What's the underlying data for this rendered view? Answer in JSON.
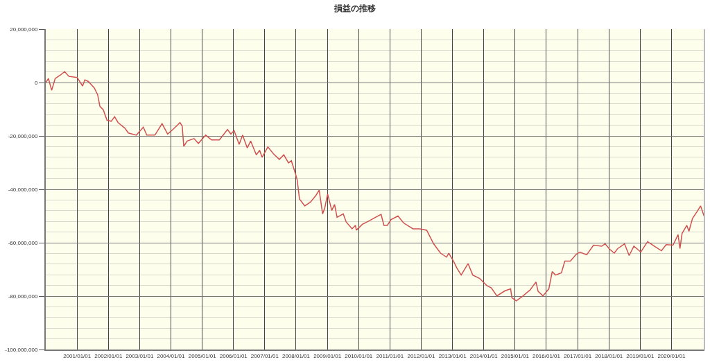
{
  "chart_data": {
    "type": "line",
    "title": "損益の推移",
    "x": [
      "2000-01-01",
      "2000-02-01",
      "2000-03-10",
      "2000-04-20",
      "2000-06-20",
      "2000-08-08",
      "2000-09-27",
      "2001-01-01",
      "2001-03-06",
      "2001-04-01",
      "2001-05-12",
      "2001-07-20",
      "2001-08-29",
      "2001-09-24",
      "2001-11-02",
      "2001-12-16",
      "2002-02-03",
      "2002-03-15",
      "2002-04-24",
      "2002-07-13",
      "2002-08-22",
      "2002-11-24",
      "2003-02-13",
      "2003-03-25",
      "2003-06-28",
      "2003-09-20",
      "2003-11-24",
      "2004-01-30",
      "2004-04-16",
      "2004-05-12",
      "2004-05-30",
      "2004-07-09",
      "2004-09-27",
      "2004-11-17",
      "2005-02-10",
      "2005-04-20",
      "2005-07-20",
      "2005-10-23",
      "2005-12-01",
      "2006-01-08",
      "2006-03-08",
      "2006-04-17",
      "2006-06-10",
      "2006-07-20",
      "2006-09-24",
      "2006-11-02",
      "2006-12-01",
      "2007-02-06",
      "2007-04-12",
      "2007-06-20",
      "2007-08-11",
      "2007-10-05",
      "2007-11-07",
      "2007-12-24",
      "2008-01-15",
      "2008-02-10",
      "2008-04-12",
      "2008-06-17",
      "2008-08-22",
      "2008-09-27",
      "2008-11-06",
      "2008-12-01",
      "2009-01-04",
      "2009-02-21",
      "2009-03-26",
      "2009-04-24",
      "2009-07-05",
      "2009-08-08",
      "2009-10-16",
      "2009-11-24",
      "2009-12-05",
      "2010-02-14",
      "2010-05-05",
      "2010-07-09",
      "2010-09-20",
      "2010-10-23",
      "2010-12-01",
      "2011-01-15",
      "2011-04-05",
      "2011-06-10",
      "2011-09-27",
      "2011-12-16",
      "2012-03-05",
      "2012-05-25",
      "2012-08-14",
      "2012-10-23",
      "2012-11-18",
      "2013-01-12",
      "2013-02-21",
      "2013-04-12",
      "2013-07-01",
      "2013-08-25",
      "2013-11-14",
      "2014-02-03",
      "2014-03-29",
      "2014-06-03",
      "2014-09-06",
      "2014-11-10",
      "2014-11-25",
      "2015-01-15",
      "2015-04-05",
      "2015-06-25",
      "2015-09-02",
      "2015-09-27",
      "2015-11-22",
      "2016-01-30",
      "2016-03-10",
      "2016-04-16",
      "2016-06-25",
      "2016-08-04",
      "2016-10-08",
      "2016-12-16",
      "2017-01-26",
      "2017-04-16",
      "2017-07-05",
      "2017-10-08",
      "2017-11-17",
      "2018-01-08",
      "2018-03-04",
      "2018-04-13",
      "2018-07-02",
      "2018-08-25",
      "2018-10-19",
      "2019-01-08",
      "2019-03-28",
      "2019-06-17",
      "2019-09-06",
      "2019-10-31",
      "2020-01-19",
      "2020-03-18",
      "2020-04-09",
      "2020-05-04",
      "2020-06-28",
      "2020-07-23",
      "2020-09-02",
      "2020-10-27",
      "2020-12-06",
      "2021-01-15"
    ],
    "series": [
      {
        "color": "#d05050",
        "values": [
          0,
          1500000,
          -2900000,
          1500000,
          2800000,
          4100000,
          2300000,
          1900000,
          -1300000,
          1000000,
          400000,
          -2000000,
          -4600000,
          -8900000,
          -10200000,
          -14100000,
          -14500000,
          -12800000,
          -15000000,
          -17100000,
          -18900000,
          -19700000,
          -16700000,
          -19700000,
          -19700000,
          -15400000,
          -19300000,
          -17400000,
          -15000000,
          -16300000,
          -23900000,
          -21900000,
          -21000000,
          -22800000,
          -19700000,
          -21500000,
          -21500000,
          -17600000,
          -19300000,
          -18000000,
          -23200000,
          -19700000,
          -24500000,
          -21900000,
          -27100000,
          -25400000,
          -28000000,
          -24100000,
          -26700000,
          -28800000,
          -27100000,
          -30100000,
          -29300000,
          -34000000,
          -36600000,
          -43600000,
          -46200000,
          -44800000,
          -42200000,
          -40300000,
          -49200000,
          -47000000,
          -41800000,
          -47900000,
          -45700000,
          -50500000,
          -49200000,
          -52200000,
          -54800000,
          -53500000,
          -55300000,
          -53100000,
          -51800000,
          -50600000,
          -49400000,
          -53500000,
          -53500000,
          -51300000,
          -50000000,
          -52600000,
          -54800000,
          -54800000,
          -55300000,
          -60400000,
          -63900000,
          -65400000,
          -63900000,
          -66900000,
          -69500000,
          -72100000,
          -67800000,
          -72100000,
          -73400000,
          -76000000,
          -76900000,
          -79900000,
          -78000000,
          -77300000,
          -80600000,
          -81800000,
          -79900000,
          -77700000,
          -74700000,
          -78200000,
          -79900000,
          -77300000,
          -70800000,
          -72100000,
          -71300000,
          -66900000,
          -66900000,
          -64300000,
          -63500000,
          -64500000,
          -60900000,
          -61300000,
          -60400000,
          -62400000,
          -63900000,
          -62200000,
          -60400000,
          -64800000,
          -61300000,
          -63500000,
          -59600000,
          -61300000,
          -63000000,
          -60700000,
          -60900000,
          -57000000,
          -62200000,
          -56500000,
          -53500000,
          -55700000,
          -50900000,
          -48300000,
          -46200000,
          -50000000
        ]
      }
    ],
    "xlim": [
      "2000-01-01",
      "2021-01-20"
    ],
    "xticks": [
      {
        "value": "2001-01-01",
        "label": "2001/01/01"
      },
      {
        "value": "2002-01-01",
        "label": "2002/01/01"
      },
      {
        "value": "2003-01-01",
        "label": "2003/01/01"
      },
      {
        "value": "2004-01-01",
        "label": "2004/01/01"
      },
      {
        "value": "2005-01-01",
        "label": "2005/01/01"
      },
      {
        "value": "2006-01-01",
        "label": "2006/01/01"
      },
      {
        "value": "2007-01-01",
        "label": "2007/01/01"
      },
      {
        "value": "2008-01-01",
        "label": "2008/01/01"
      },
      {
        "value": "2009-01-01",
        "label": "2009/01/01"
      },
      {
        "value": "2010-01-01",
        "label": "2010/01/01"
      },
      {
        "value": "2011-01-01",
        "label": "2011/01/01"
      },
      {
        "value": "2012-01-01",
        "label": "2012/01/01"
      },
      {
        "value": "2013-01-01",
        "label": "2013/01/01"
      },
      {
        "value": "2014-01-01",
        "label": "2014/01/01"
      },
      {
        "value": "2015-01-01",
        "label": "2015/01/01"
      },
      {
        "value": "2016-01-01",
        "label": "2016/01/01"
      },
      {
        "value": "2017-01-01",
        "label": "2017/01/01"
      },
      {
        "value": "2018-01-01",
        "label": "2018/01/01"
      },
      {
        "value": "2019-01-01",
        "label": "2019/01/01"
      },
      {
        "value": "2020-01-01",
        "label": "2020/01/01"
      }
    ],
    "ylim": [
      -100000000,
      20000000
    ],
    "yticks": [
      {
        "value": -100000000,
        "label": "-100,000,000"
      },
      {
        "value": -96000000,
        "label": null
      },
      {
        "value": -92000000,
        "label": null
      },
      {
        "value": -88000000,
        "label": null
      },
      {
        "value": -84000000,
        "label": null
      },
      {
        "value": -80000000,
        "label": "-80,000,000"
      },
      {
        "value": -76000000,
        "label": null
      },
      {
        "value": -72000000,
        "label": null
      },
      {
        "value": -68000000,
        "label": null
      },
      {
        "value": -64000000,
        "label": null
      },
      {
        "value": -60000000,
        "label": "-60,000,000"
      },
      {
        "value": -56000000,
        "label": null
      },
      {
        "value": -52000000,
        "label": null
      },
      {
        "value": -48000000,
        "label": null
      },
      {
        "value": -44000000,
        "label": null
      },
      {
        "value": -40000000,
        "label": "-40,000,000"
      },
      {
        "value": -36000000,
        "label": null
      },
      {
        "value": -32000000,
        "label": null
      },
      {
        "value": -28000000,
        "label": null
      },
      {
        "value": -24000000,
        "label": null
      },
      {
        "value": -20000000,
        "label": "-20,000,000"
      },
      {
        "value": -16000000,
        "label": null
      },
      {
        "value": -12000000,
        "label": null
      },
      {
        "value": -8000000,
        "label": null
      },
      {
        "value": -4000000,
        "label": null
      },
      {
        "value": 0,
        "label": "0"
      },
      {
        "value": 4000000,
        "label": null
      },
      {
        "value": 8000000,
        "label": null
      },
      {
        "value": 12000000,
        "label": null
      },
      {
        "value": 16000000,
        "label": null
      },
      {
        "value": 20000000,
        "label": "20,000,000"
      }
    ],
    "grid": true,
    "marker": "none",
    "line_style": "solid"
  }
}
